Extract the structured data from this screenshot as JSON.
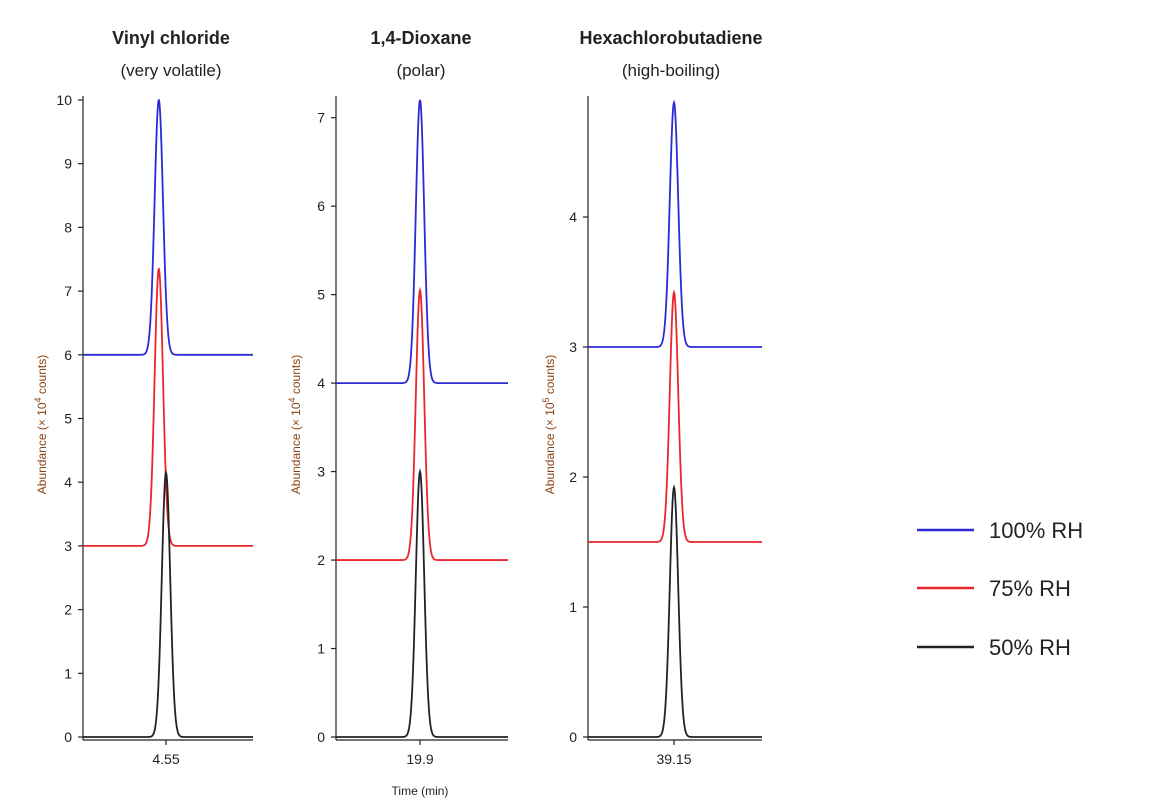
{
  "chart_data": {
    "type": "line",
    "legend": {
      "placement": "right",
      "entries": [
        {
          "label": "100% RH",
          "color": "#2b2bd6"
        },
        {
          "label": "75% RH",
          "color": "#e8262b"
        },
        {
          "label": "50% RH",
          "color": "#222222"
        }
      ]
    },
    "xlabel": "Time (min)",
    "panels": [
      {
        "title": "Vinyl chloride",
        "subtitle": "(very volatile)",
        "ylabel_parts": [
          "Abundance (× 10",
          "4",
          " counts)"
        ],
        "ylim": [
          0,
          10
        ],
        "yticks": [
          0,
          1,
          2,
          3,
          4,
          5,
          6,
          7,
          8,
          9,
          10
        ],
        "xtick_label": "4.55",
        "series": [
          {
            "name": "100% RH",
            "color": "#2b2bd6",
            "baseline": 6.0,
            "apex": 10.0,
            "center": -0.12
          },
          {
            "name": "75% RH",
            "color": "#e8262b",
            "baseline": 3.0,
            "apex": 7.35,
            "center": -0.12
          },
          {
            "name": "50% RH",
            "color": "#222222",
            "baseline": 0.0,
            "apex": 4.15,
            "center": 0.0
          }
        ]
      },
      {
        "title": "1,4-Dioxane",
        "subtitle": "(polar)",
        "ylabel_parts": [
          "Abundance (× 10",
          "4",
          " counts)"
        ],
        "ylim": [
          0,
          7.2
        ],
        "yticks": [
          0,
          1,
          2,
          3,
          4,
          5,
          6,
          7
        ],
        "xtick_label": "19.9",
        "series": [
          {
            "name": "100% RH",
            "color": "#2b2bd6",
            "baseline": 4.0,
            "apex": 7.2,
            "center": 0.0
          },
          {
            "name": "75% RH",
            "color": "#e8262b",
            "baseline": 2.0,
            "apex": 5.05,
            "center": 0.0
          },
          {
            "name": "50% RH",
            "color": "#222222",
            "baseline": 0.0,
            "apex": 3.0,
            "center": 0.0
          }
        ]
      },
      {
        "title": "Hexachlorobutadiene",
        "subtitle": "(high-boiling)",
        "ylabel_parts": [
          "Abundance (× 10",
          "5",
          " counts)"
        ],
        "ylim": [
          0,
          4.9
        ],
        "yticks": [
          0,
          1,
          2,
          3,
          4
        ],
        "xtick_label": "39.15",
        "series": [
          {
            "name": "100% RH",
            "color": "#2b2bd6",
            "baseline": 3.0,
            "apex": 4.88,
            "center": 0.0
          },
          {
            "name": "75% RH",
            "color": "#e8262b",
            "baseline": 1.5,
            "apex": 3.42,
            "center": 0.0
          },
          {
            "name": "50% RH",
            "color": "#222222",
            "baseline": 0.0,
            "apex": 1.92,
            "center": 0.0
          }
        ]
      }
    ]
  }
}
